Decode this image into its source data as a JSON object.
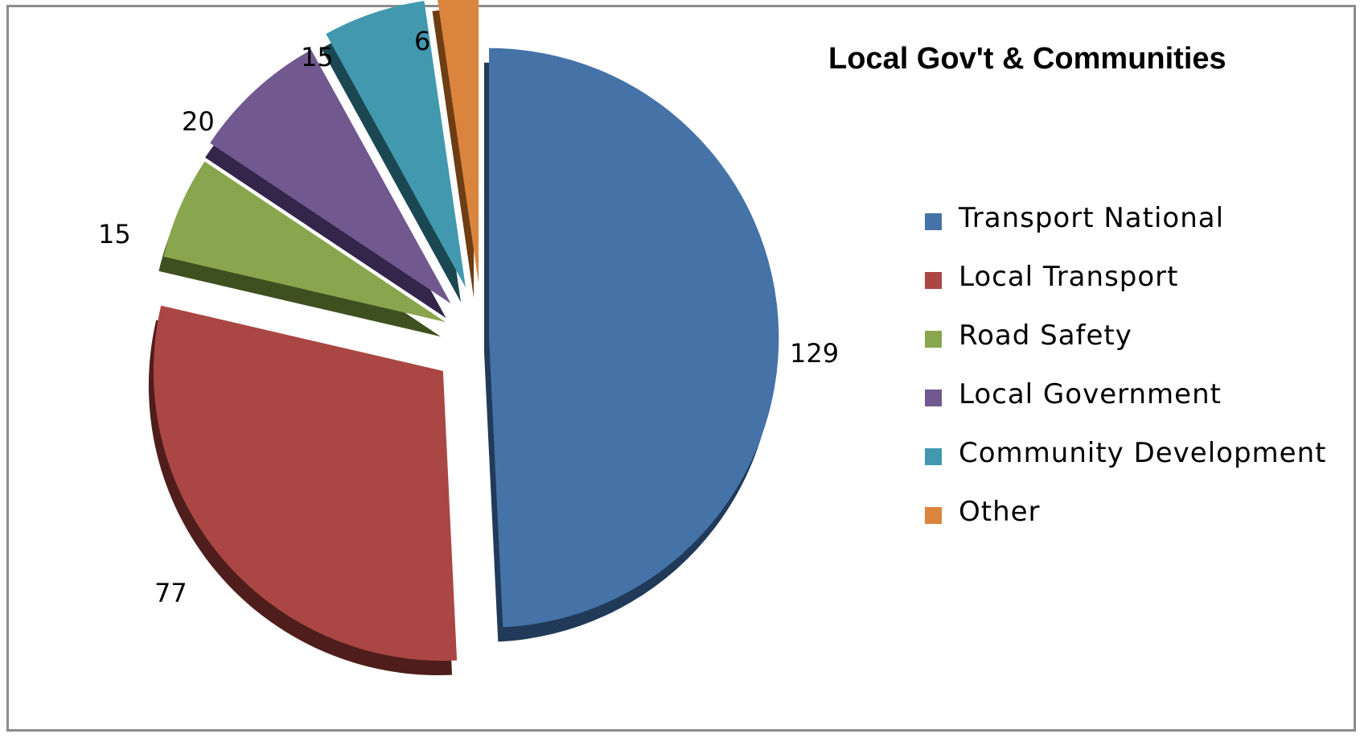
{
  "chart_data": {
    "type": "pie",
    "title": "Local Gov't & Communities",
    "slices": [
      {
        "name": "Transport National",
        "value": 129,
        "color": "#4572A7",
        "dark": "#213A5A"
      },
      {
        "name": "Local Transport",
        "value": 77,
        "color": "#AA4643",
        "dark": "#4F1E1C"
      },
      {
        "name": "Road Safety",
        "value": 15,
        "color": "#89A54E",
        "dark": "#3E5020"
      },
      {
        "name": "Local Government",
        "value": 20,
        "color": "#71588F",
        "dark": "#33264A"
      },
      {
        "name": "Community Development",
        "value": 15,
        "color": "#4198AF",
        "dark": "#1B4753"
      },
      {
        "name": "Other",
        "value": 6,
        "color": "#DB843D",
        "dark": "#6E3D14"
      }
    ],
    "data_labels": [
      "129",
      "77",
      "15",
      "20",
      "15",
      "6"
    ],
    "legend": [
      "Transport National",
      "Local Transport",
      "Road Safety",
      "Local Government",
      "Community Development",
      "Other"
    ],
    "legend_position": "right",
    "exploded": true,
    "style": "3d"
  }
}
